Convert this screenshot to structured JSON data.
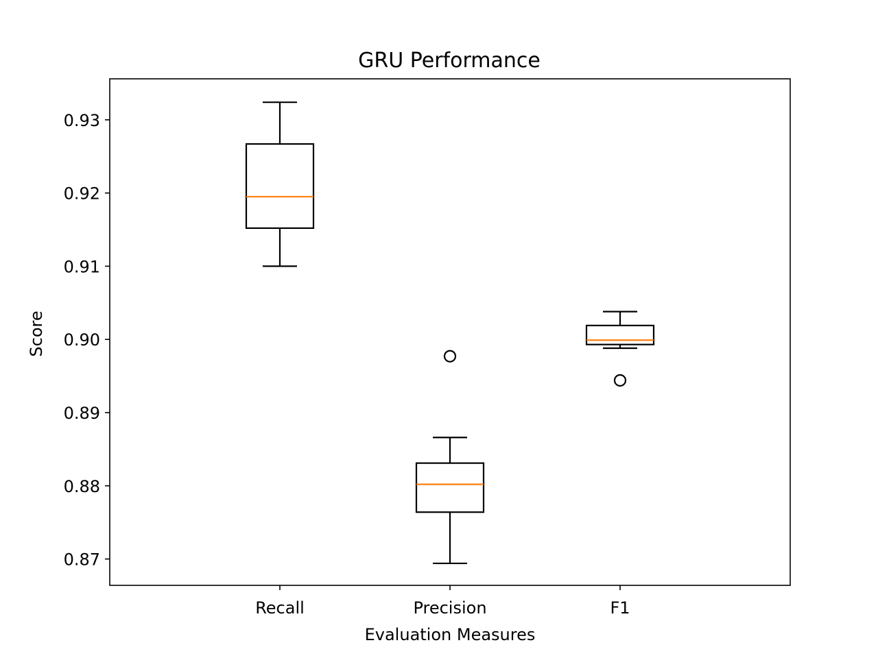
{
  "chart_data": {
    "type": "box",
    "title": "GRU Performance",
    "xlabel": "Evaluation Measures",
    "ylabel": "Score",
    "ylim": [
      0.8664,
      0.9356
    ],
    "yticks": [
      0.87,
      0.88,
      0.89,
      0.9,
      0.91,
      0.92,
      0.93
    ],
    "ytick_labels": [
      "0.87",
      "0.88",
      "0.89",
      "0.90",
      "0.91",
      "0.92",
      "0.93"
    ],
    "categories": [
      "Recall",
      "Precision",
      "F1"
    ],
    "grid": false,
    "boxes": [
      {
        "name": "Recall",
        "whisker_low": 0.91,
        "q1": 0.9152,
        "median": 0.9195,
        "q3": 0.9267,
        "whisker_high": 0.9324,
        "outliers": []
      },
      {
        "name": "Precision",
        "whisker_low": 0.8694,
        "q1": 0.8764,
        "median": 0.8802,
        "q3": 0.8831,
        "whisker_high": 0.8866,
        "outliers": [
          0.8977
        ]
      },
      {
        "name": "F1",
        "whisker_low": 0.8988,
        "q1": 0.8993,
        "median": 0.8999,
        "q3": 0.9019,
        "whisker_high": 0.9038,
        "outliers": [
          0.8944
        ]
      }
    ],
    "colors": {
      "box": "#000000",
      "median": "#ff7f0e",
      "outlier": "#000000"
    }
  }
}
